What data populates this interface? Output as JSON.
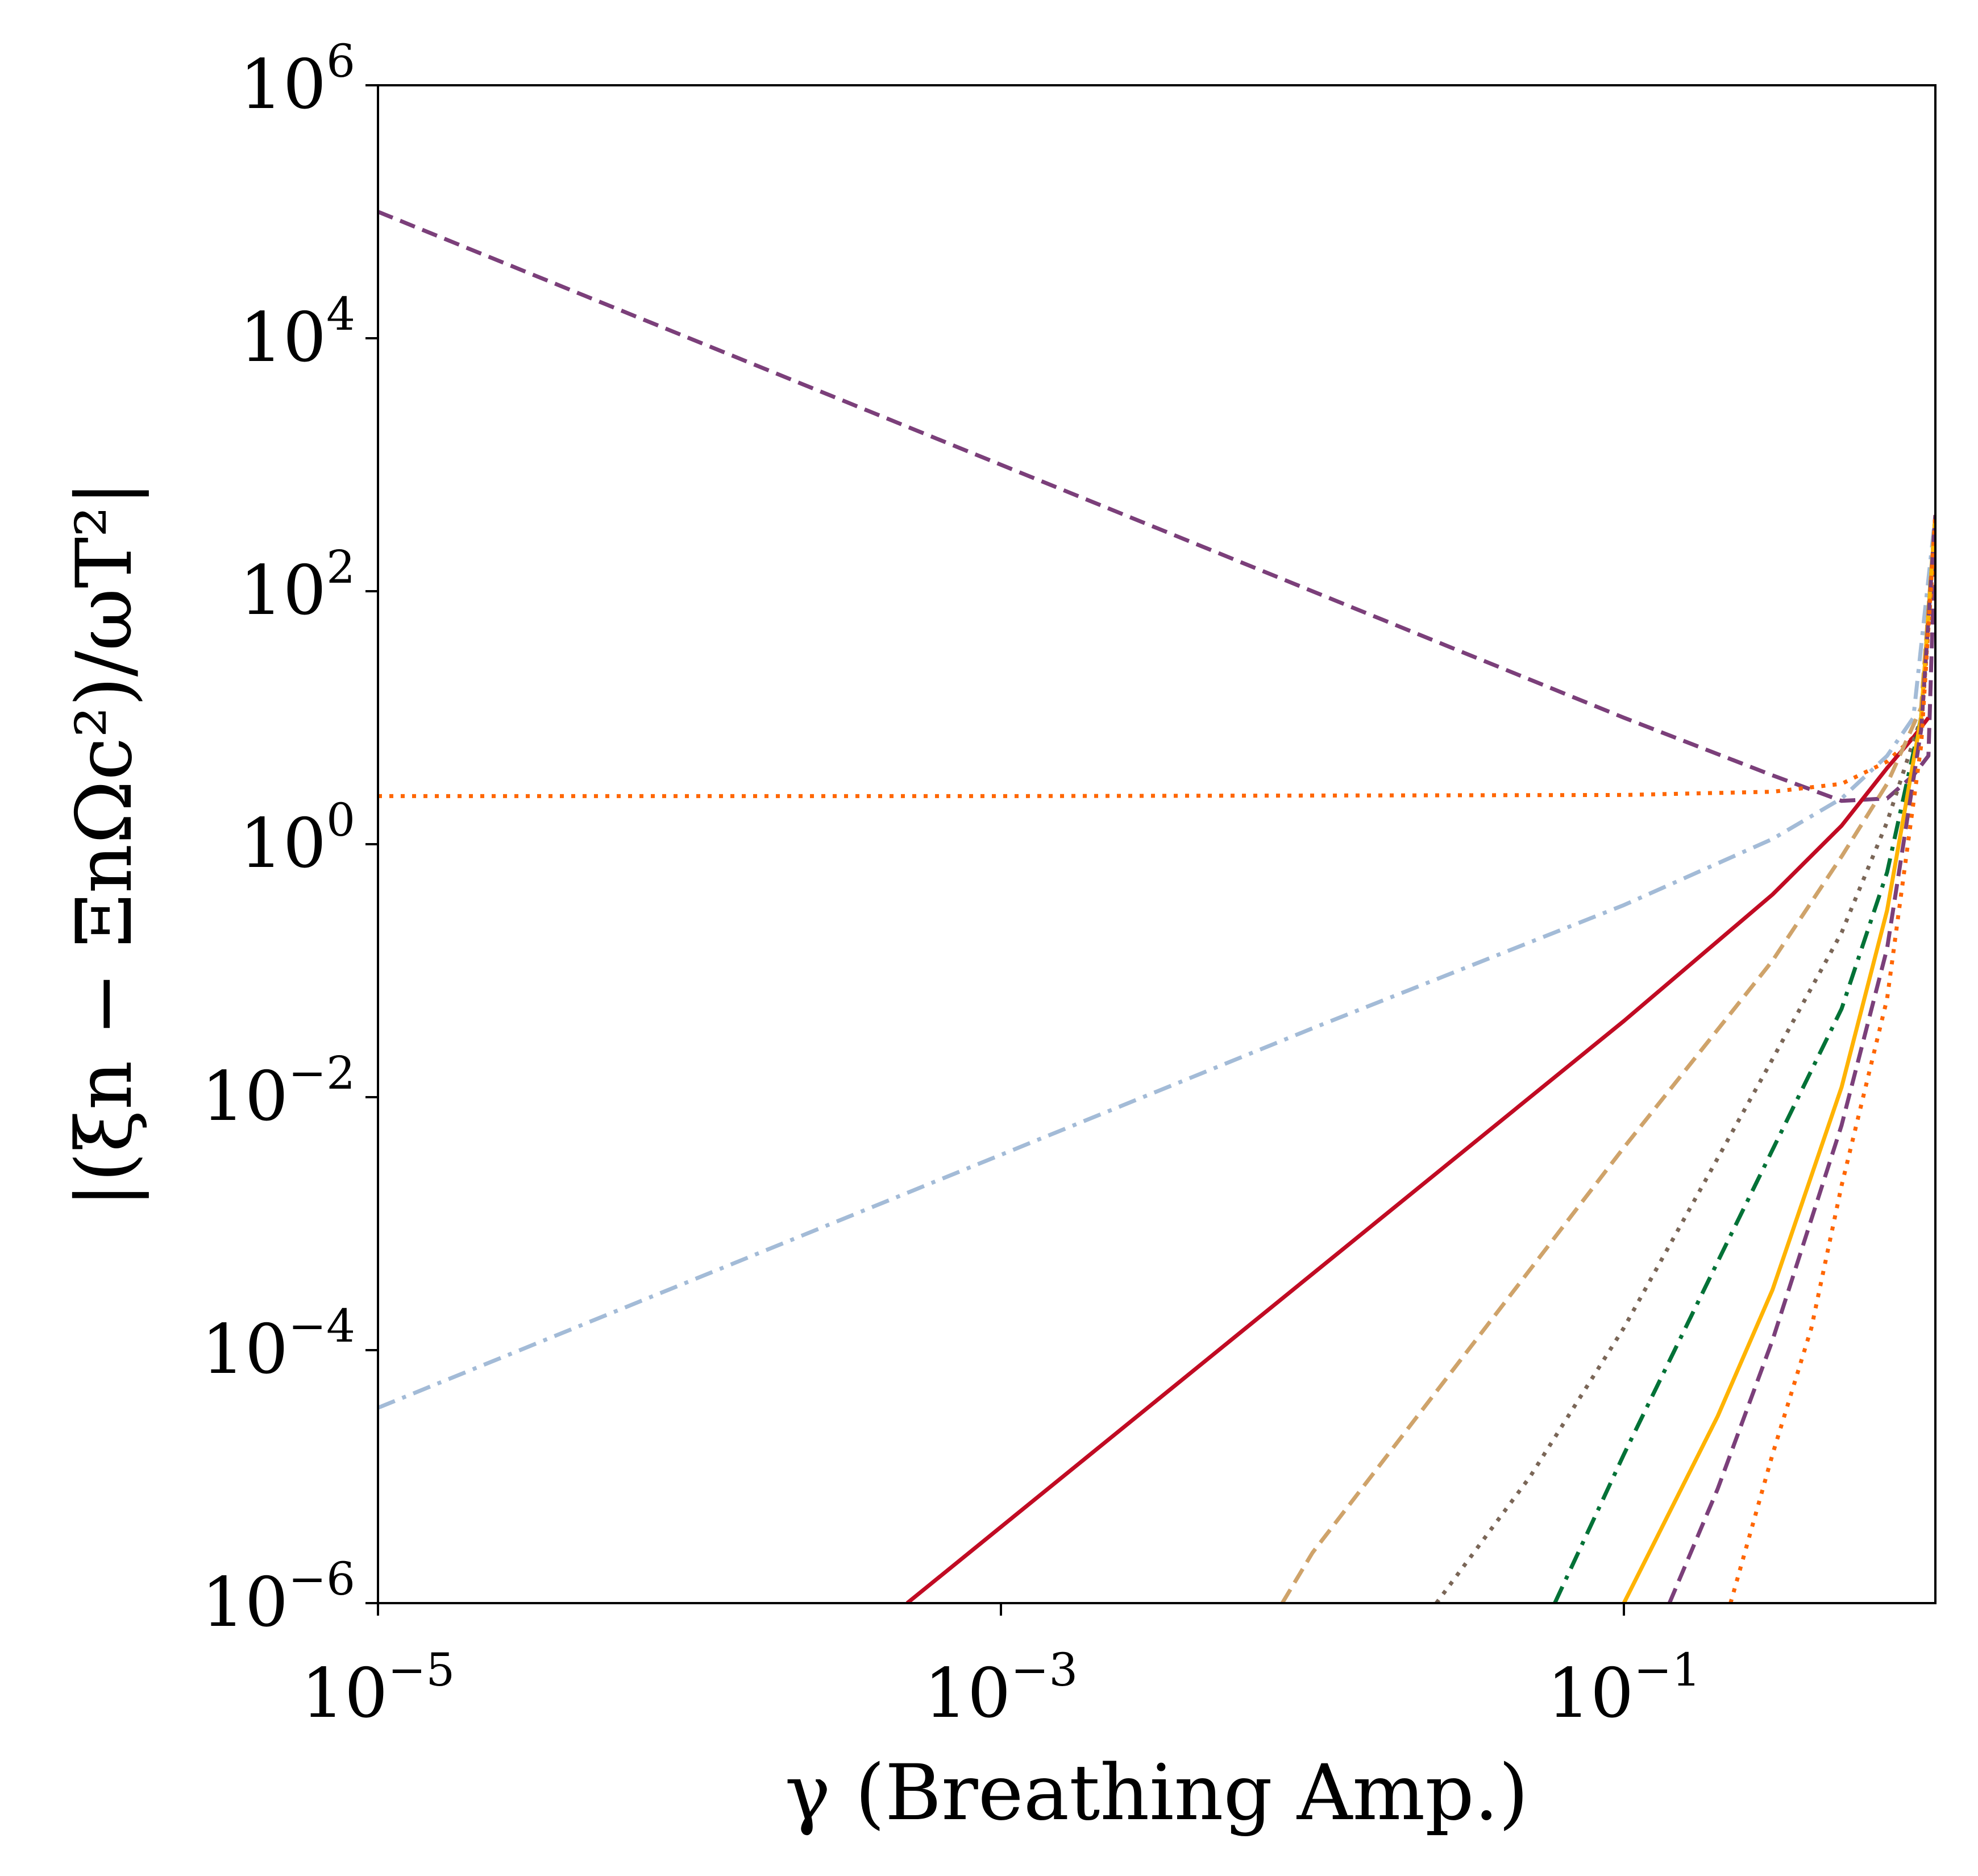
{
  "chart_data": {
    "type": "line",
    "x_scale": "log",
    "y_scale": "log",
    "xlim": [
      1e-05,
      1.0
    ],
    "ylim": [
      1e-06,
      1000000.0
    ],
    "xlabel": "γ (Breathing Amp.)",
    "ylabel": "|(ξn − ΞnΩc²)/ωT²|",
    "grid": false,
    "x_ticks": [
      {
        "base": "10",
        "exp": "−5",
        "value": 1e-05
      },
      {
        "base": "10",
        "exp": "−3",
        "value": 0.001
      },
      {
        "base": "10",
        "exp": "−1",
        "value": 0.1
      }
    ],
    "y_ticks": [
      {
        "base": "10",
        "exp": "6",
        "value": 1000000.0
      },
      {
        "base": "10",
        "exp": "4",
        "value": 10000.0
      },
      {
        "base": "10",
        "exp": "2",
        "value": 100
      },
      {
        "base": "10",
        "exp": "0",
        "value": 1
      },
      {
        "base": "10",
        "exp": "−2",
        "value": 0.01
      },
      {
        "base": "10",
        "exp": "−4",
        "value": 0.0001
      },
      {
        "base": "10",
        "exp": "−6",
        "value": 1e-06
      }
    ],
    "series": [
      {
        "color": "#7b3f7a",
        "style": "dashed",
        "x": [
          1e-05,
          0.0001,
          0.001,
          0.01,
          0.1,
          0.3,
          0.5,
          0.7,
          0.85,
          0.95,
          1.0
        ],
        "y": [
          100000,
          10000,
          1000,
          100,
          10,
          3.5,
          2.2,
          2.3,
          3.5,
          5,
          300
        ]
      },
      {
        "color": "#ff6600",
        "style": "dotted",
        "x": [
          1e-05,
          0.001,
          0.1,
          0.3,
          0.5,
          0.7,
          0.9,
          1.0
        ],
        "y": [
          2.4,
          2.4,
          2.45,
          2.6,
          3.0,
          4.5,
          8,
          300
        ]
      },
      {
        "color": "#a3bbd7",
        "style": "dashdot",
        "x": [
          1e-05,
          0.0001,
          0.001,
          0.01,
          0.1,
          0.3,
          0.5,
          0.7,
          0.85,
          1.0
        ],
        "y": [
          3.5e-05,
          0.00035,
          0.0035,
          0.035,
          0.33,
          1.1,
          2.3,
          5,
          10,
          400
        ]
      },
      {
        "color": "#c10b23",
        "style": "solid",
        "x": [
          0.0005,
          0.001,
          0.01,
          0.1,
          0.3,
          0.5,
          0.7,
          0.85,
          0.95
        ],
        "y": [
          1e-06,
          4e-06,
          0.0004,
          0.04,
          0.4,
          1.4,
          4,
          7,
          10
        ]
      },
      {
        "color": "#cfa36a",
        "style": "dashed",
        "x": [
          0.008,
          0.01,
          0.1,
          0.3,
          0.5,
          0.7,
          0.9,
          1.0
        ],
        "y": [
          1e-06,
          2.5e-06,
          0.004,
          0.12,
          0.8,
          3,
          12,
          400
        ]
      },
      {
        "color": "#7a6657",
        "style": "dotted",
        "x": [
          0.025,
          0.05,
          0.1,
          0.3,
          0.5,
          0.7,
          0.9,
          1.0
        ],
        "y": [
          1e-06,
          1e-05,
          0.00015,
          0.02,
          0.2,
          1.5,
          10,
          400
        ]
      },
      {
        "color": "#027237",
        "style": "dashdot",
        "x": [
          0.06,
          0.1,
          0.2,
          0.5,
          0.7,
          0.9,
          1.0
        ],
        "y": [
          1e-06,
          1.5e-05,
          0.0005,
          0.05,
          0.6,
          10,
          400
        ]
      },
      {
        "color": "#ffb300",
        "style": "solid",
        "x": [
          0.1,
          0.2,
          0.3,
          0.5,
          0.7,
          0.9,
          1.0
        ],
        "y": [
          1e-06,
          3e-05,
          0.0003,
          0.012,
          0.3,
          10,
          400
        ]
      },
      {
        "color": "#7b3f7a",
        "style": "dashed",
        "x": [
          0.14,
          0.2,
          0.3,
          0.5,
          0.7,
          0.9,
          1.0
        ],
        "y": [
          1e-06,
          8e-06,
          0.00012,
          0.006,
          0.15,
          8,
          400
        ]
      },
      {
        "color": "#ff6600",
        "style": "dotted",
        "x": [
          0.22,
          0.3,
          0.4,
          0.5,
          0.7,
          0.9,
          1.0
        ],
        "y": [
          1e-06,
          1.5e-05,
          0.00015,
          0.002,
          0.06,
          6,
          400
        ]
      }
    ]
  }
}
